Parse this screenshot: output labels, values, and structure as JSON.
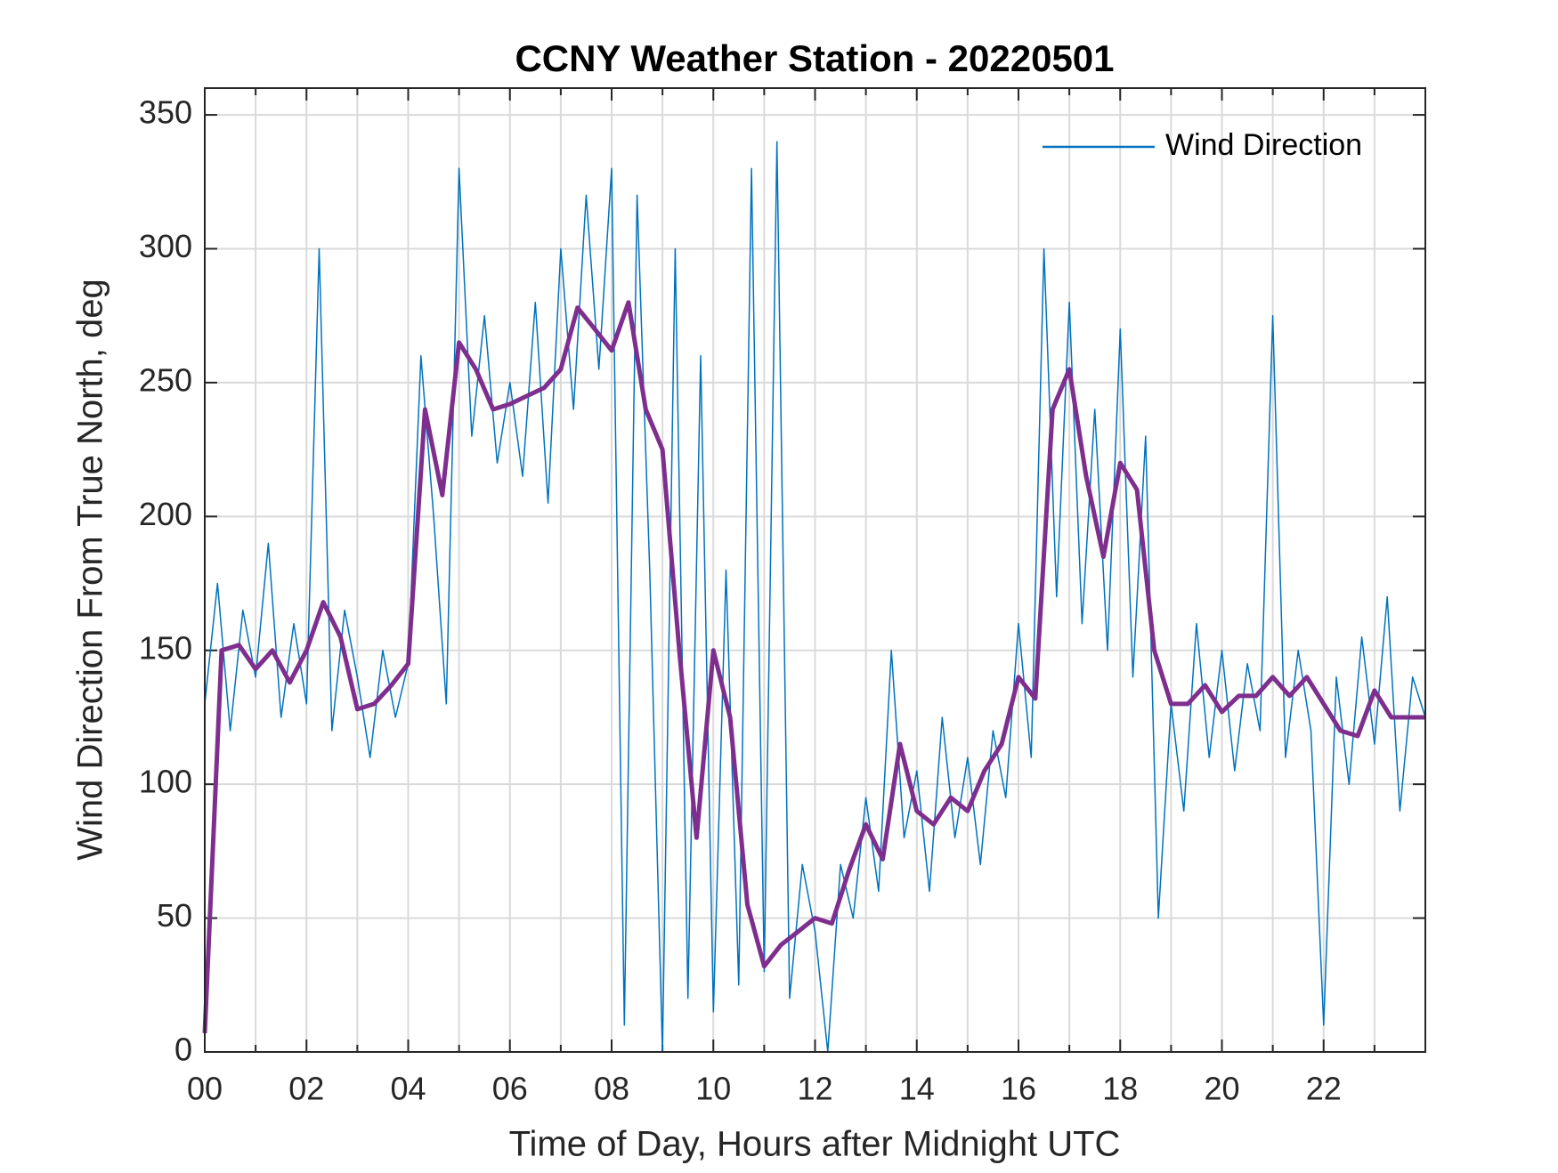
{
  "chart_data": {
    "type": "line",
    "title": "CCNY Weather Station - 20220501",
    "xlabel": "Time of Day, Hours after Midnight UTC",
    "ylabel": "Wind Direction From True North, deg",
    "xlim": [
      0,
      24
    ],
    "ylim": [
      0,
      360
    ],
    "xticks": [
      {
        "value": 0,
        "label": "00"
      },
      {
        "value": 2,
        "label": "02"
      },
      {
        "value": 4,
        "label": "04"
      },
      {
        "value": 6,
        "label": "06"
      },
      {
        "value": 8,
        "label": "08"
      },
      10,
      12,
      14,
      16,
      18,
      20,
      22
    ],
    "yticks": [
      0,
      50,
      100,
      150,
      200,
      250,
      300,
      350
    ],
    "grid": true,
    "minor_grid": true,
    "legend": "top-right",
    "series": [
      {
        "name": "Wind Direction",
        "color": "#0072bd",
        "width": 1.5,
        "x": [
          0,
          0.25,
          0.5,
          0.75,
          1,
          1.25,
          1.5,
          1.75,
          2,
          2.25,
          2.5,
          2.75,
          3,
          3.25,
          3.5,
          3.75,
          4,
          4.25,
          4.5,
          4.75,
          5,
          5.25,
          5.5,
          5.75,
          6,
          6.25,
          6.5,
          6.75,
          7,
          7.25,
          7.5,
          7.75,
          8,
          8.25,
          8.5,
          8.75,
          9,
          9.25,
          9.5,
          9.75,
          10,
          10.25,
          10.5,
          10.75,
          11,
          11.25,
          11.5,
          11.75,
          12,
          12.25,
          12.5,
          12.75,
          13,
          13.25,
          13.5,
          13.75,
          14,
          14.25,
          14.5,
          14.75,
          15,
          15.25,
          15.5,
          15.75,
          16,
          16.25,
          16.5,
          16.75,
          17,
          17.25,
          17.5,
          17.75,
          18,
          18.25,
          18.5,
          18.75,
          19,
          19.25,
          19.5,
          19.75,
          20,
          20.25,
          20.5,
          20.75,
          21,
          21.25,
          21.5,
          21.75,
          22,
          22.25,
          22.5,
          22.75,
          23,
          23.25,
          23.5,
          23.75,
          24
        ],
        "values": [
          130,
          175,
          120,
          165,
          140,
          190,
          125,
          160,
          130,
          300,
          120,
          165,
          140,
          110,
          150,
          125,
          145,
          260,
          200,
          130,
          330,
          230,
          275,
          220,
          250,
          215,
          280,
          205,
          300,
          240,
          320,
          255,
          330,
          10,
          320,
          180,
          0,
          300,
          20,
          260,
          15,
          180,
          25,
          330,
          30,
          340,
          20,
          70,
          45,
          0,
          70,
          50,
          95,
          60,
          150,
          80,
          105,
          60,
          125,
          80,
          110,
          70,
          120,
          95,
          160,
          110,
          300,
          170,
          280,
          160,
          240,
          150,
          270,
          140,
          230,
          50,
          130,
          90,
          160,
          110,
          150,
          105,
          145,
          120,
          275,
          110,
          150,
          120,
          10,
          140,
          100,
          155,
          115,
          170,
          90,
          140,
          125
        ]
      },
      {
        "color": "#7e2f8e",
        "width": 5,
        "x": [
          0,
          0.33,
          0.67,
          1,
          1.33,
          1.67,
          2,
          2.33,
          2.67,
          3,
          3.33,
          3.67,
          4,
          4.33,
          4.67,
          5,
          5.33,
          5.67,
          6,
          6.33,
          6.67,
          7,
          7.33,
          7.67,
          8,
          8.33,
          8.67,
          9,
          9.33,
          9.67,
          10,
          10.33,
          10.67,
          11,
          11.33,
          11.67,
          12,
          12.33,
          12.67,
          13,
          13.33,
          13.67,
          14,
          14.33,
          14.67,
          15,
          15.33,
          15.67,
          16,
          16.33,
          16.67,
          17,
          17.33,
          17.67,
          18,
          18.33,
          18.67,
          19,
          19.33,
          19.67,
          20,
          20.33,
          20.67,
          21,
          21.33,
          21.67,
          22,
          22.33,
          22.67,
          23,
          23.33,
          23.67,
          24
        ],
        "values": [
          7,
          150,
          152,
          143,
          150,
          138,
          150,
          168,
          155,
          128,
          130,
          137,
          145,
          240,
          208,
          265,
          255,
          240,
          242,
          245,
          248,
          255,
          278,
          270,
          262,
          280,
          240,
          225,
          150,
          80,
          150,
          125,
          55,
          32,
          40,
          45,
          50,
          48,
          68,
          85,
          72,
          115,
          90,
          85,
          95,
          90,
          105,
          115,
          140,
          132,
          240,
          255,
          215,
          185,
          220,
          210,
          150,
          130,
          130,
          137,
          127,
          133,
          133,
          140,
          133,
          140,
          130,
          120,
          118,
          135,
          125,
          125,
          125
        ]
      }
    ]
  }
}
